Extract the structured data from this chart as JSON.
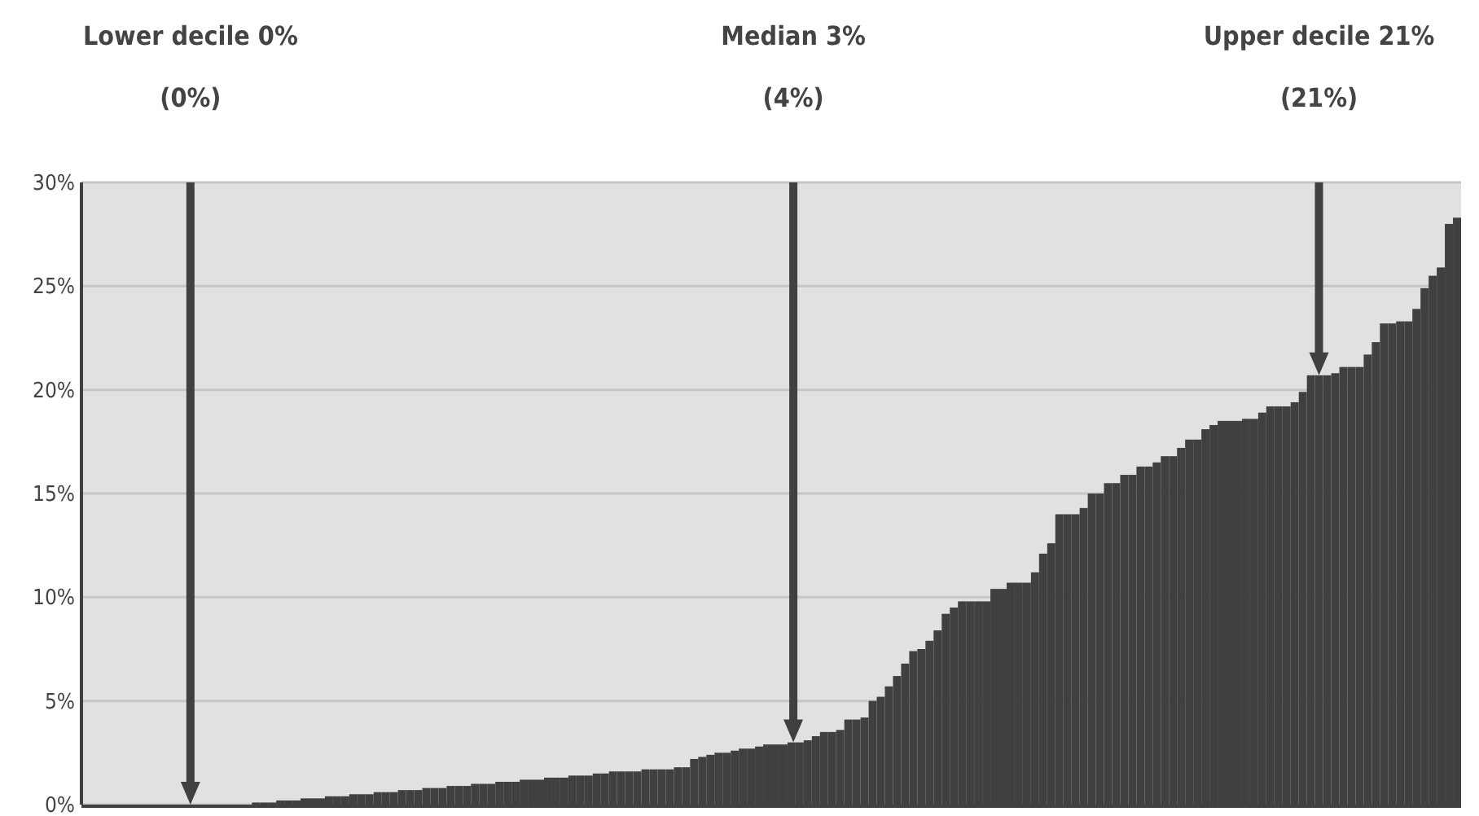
{
  "chart_data": {
    "type": "bar",
    "categories": [
      null,
      null,
      null,
      null,
      null,
      null,
      null,
      null,
      null,
      null,
      null,
      null,
      null,
      null,
      null,
      null,
      null,
      null,
      null,
      null,
      null,
      null,
      null,
      null,
      null,
      null,
      null,
      null,
      null,
      null,
      null,
      null,
      null,
      null,
      null,
      null,
      null,
      null,
      null,
      null,
      null,
      null,
      null,
      null,
      null,
      null,
      null,
      null,
      null,
      null,
      null,
      null,
      null,
      null,
      null,
      null,
      null,
      null,
      null,
      null,
      null,
      null,
      null,
      null,
      null,
      null,
      null,
      null,
      null,
      null,
      null,
      null,
      null,
      null,
      null,
      null,
      null,
      null,
      null,
      null,
      null,
      null,
      null,
      null,
      null,
      null,
      null,
      null,
      null,
      null,
      null,
      null,
      null,
      null,
      null,
      null,
      null,
      null,
      null,
      null,
      null,
      null,
      null,
      null,
      null,
      null,
      null,
      null,
      null,
      null,
      null,
      null,
      null,
      null,
      null,
      null,
      null,
      null,
      null,
      null,
      null,
      null,
      null,
      null,
      null,
      null,
      null,
      null,
      null,
      null,
      null,
      null,
      null,
      null,
      null,
      null,
      null,
      null,
      null,
      null,
      null,
      null,
      null,
      null,
      null,
      null,
      null,
      null,
      null,
      null,
      null,
      null,
      null,
      null,
      null,
      null,
      null,
      null,
      null,
      null,
      null,
      null,
      null,
      null,
      null,
      null,
      null,
      null,
      null,
      null
    ],
    "values": [
      0,
      0,
      0,
      0,
      0,
      0,
      0,
      0,
      0,
      0,
      0,
      0,
      0,
      0,
      0,
      0,
      0,
      0,
      0,
      0,
      0,
      0.1,
      0.1,
      0.1,
      0.2,
      0.2,
      0.2,
      0.3,
      0.3,
      0.3,
      0.4,
      0.4,
      0.4,
      0.5,
      0.5,
      0.5,
      0.6,
      0.6,
      0.6,
      0.7,
      0.7,
      0.7,
      0.8,
      0.8,
      0.8,
      0.9,
      0.9,
      0.9,
      1.0,
      1.0,
      1.0,
      1.1,
      1.1,
      1.1,
      1.2,
      1.2,
      1.2,
      1.3,
      1.3,
      1.3,
      1.4,
      1.4,
      1.4,
      1.5,
      1.5,
      1.6,
      1.6,
      1.6,
      1.6,
      1.7,
      1.7,
      1.7,
      1.7,
      1.8,
      1.8,
      2.2,
      2.3,
      2.4,
      2.5,
      2.5,
      2.6,
      2.7,
      2.7,
      2.8,
      2.9,
      2.9,
      2.9,
      3.0,
      3.0,
      3.1,
      3.3,
      3.5,
      3.5,
      3.6,
      4.1,
      4.1,
      4.2,
      5.0,
      5.2,
      5.7,
      6.2,
      6.8,
      7.4,
      7.5,
      7.9,
      8.4,
      9.2,
      9.5,
      9.8,
      9.8,
      9.8,
      9.8,
      10.4,
      10.4,
      10.7,
      10.7,
      10.7,
      11.2,
      12.1,
      12.6,
      14.0,
      14.0,
      14.0,
      14.3,
      15.0,
      15.0,
      15.5,
      15.5,
      15.9,
      15.9,
      16.3,
      16.3,
      16.5,
      16.8,
      16.8,
      17.2,
      17.6,
      17.6,
      18.1,
      18.3,
      18.5,
      18.5,
      18.5,
      18.6,
      18.6,
      18.9,
      19.2,
      19.2,
      19.2,
      19.4,
      19.9,
      20.7,
      20.7,
      20.7,
      20.8,
      21.1,
      21.1,
      21.1,
      21.7,
      22.3,
      23.2,
      23.2,
      23.3,
      23.3,
      23.9,
      24.9,
      25.5,
      25.9,
      28.0,
      28.3
    ],
    "color": "#404040",
    "ylim": [
      0,
      30
    ],
    "yticks": [
      {
        "value": 0,
        "label": "0%"
      },
      {
        "value": 5,
        "label": "5%"
      },
      {
        "value": 10,
        "label": "10%"
      },
      {
        "value": 15,
        "label": "15%"
      },
      {
        "value": 20,
        "label": "20%"
      },
      {
        "value": 25,
        "label": "25%"
      },
      {
        "value": 30,
        "label": "30%"
      }
    ],
    "tick_labels": "y",
    "grid": "y",
    "annotations": [
      "Lower decile 0%\n(0%)",
      "Median 3%\n(4%)",
      "Upper decile 21%\n(21%)"
    ]
  }
}
